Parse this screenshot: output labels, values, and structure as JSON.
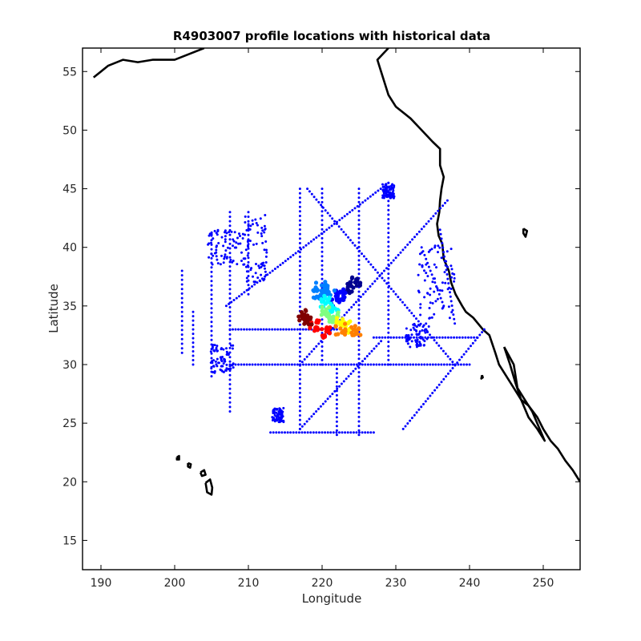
{
  "chart_data": {
    "type": "scatter",
    "title": "R4903007 profile locations with historical data",
    "xlabel": "Longitude",
    "ylabel": "Latitude",
    "xlim": [
      187.5,
      255
    ],
    "ylim": [
      12.5,
      57
    ],
    "xticks": [
      190,
      200,
      210,
      220,
      230,
      240,
      250
    ],
    "yticks": [
      15,
      20,
      25,
      30,
      35,
      40,
      45,
      50,
      55
    ],
    "grid": false,
    "legend": "none",
    "colors": {
      "historical": "#0000ff",
      "coastline": "#000000",
      "float_track_colormap": [
        "#00008f",
        "#0000ff",
        "#0080ff",
        "#00ffff",
        "#80ff80",
        "#ffff00",
        "#ff8000",
        "#ff0000",
        "#800000"
      ]
    },
    "series": [
      {
        "role": "historical",
        "marker": "dot",
        "lines": [
          {
            "from": [
              207.5,
              30.0
            ],
            "to": [
              240.0,
              30.0
            ]
          },
          {
            "from": [
              207.5,
              33.0
            ],
            "to": [
              222.0,
              33.0
            ]
          },
          {
            "from": [
              227.0,
              32.3
            ],
            "to": [
              241.0,
              32.3
            ]
          },
          {
            "from": [
              202.5,
              34.5
            ],
            "to": [
              202.5,
              30.0
            ]
          },
          {
            "from": [
              207.5,
              43.0
            ],
            "to": [
              207.5,
              26.0
            ]
          },
          {
            "from": [
              217.0,
              45.0
            ],
            "to": [
              217.0,
              24.5
            ]
          },
          {
            "from": [
              225.0,
              45.0
            ],
            "to": [
              225.0,
              24.0
            ]
          },
          {
            "from": [
              220.0,
              45.0
            ],
            "to": [
              220.0,
              30.0
            ]
          },
          {
            "from": [
              229.0,
              45.5
            ],
            "to": [
              229.0,
              30.0
            ]
          },
          {
            "from": [
              213.0,
              24.2
            ],
            "to": [
              227.0,
              24.2
            ]
          },
          {
            "from": [
              207.0,
              35.0
            ],
            "to": [
              229.0,
              45.5
            ]
          },
          {
            "from": [
              218.0,
              45.0
            ],
            "to": [
              238.0,
              30.0
            ]
          },
          {
            "from": [
              217.0,
              30.0
            ],
            "to": [
              237.0,
              44.0
            ]
          },
          {
            "from": [
              231.0,
              24.5
            ],
            "to": [
              242.0,
              33.0
            ]
          },
          {
            "from": [
              217.0,
              24.5
            ],
            "to": [
              228.0,
              32.0
            ]
          },
          {
            "from": [
              201.0,
              38.0
            ],
            "to": [
              201.0,
              31.0
            ]
          },
          {
            "from": [
              205.0,
              41.0
            ],
            "to": [
              205.0,
              29.0
            ]
          },
          {
            "from": [
              210.0,
              43.0
            ],
            "to": [
              210.0,
              36.0
            ]
          },
          {
            "from": [
              222.0,
              24.0
            ],
            "to": [
              222.0,
              30.0
            ]
          },
          {
            "from": [
              236.0,
              41.5
            ],
            "to": [
              238.0,
              33.5
            ]
          },
          {
            "from": [
              233.5,
              40.0
            ],
            "to": [
              236.5,
              35.0
            ]
          }
        ],
        "clusters": [
          {
            "center": [
              206.5,
              30.5
            ],
            "spread": [
              1.6,
              1.2
            ]
          },
          {
            "center": [
              235.5,
              37.0
            ],
            "spread": [
              2.6,
              3.2
            ]
          },
          {
            "center": [
              233.0,
              32.5
            ],
            "spread": [
              1.6,
              1.0
            ]
          },
          {
            "center": [
              229.0,
              44.8
            ],
            "spread": [
              0.8,
              0.6
            ]
          },
          {
            "center": [
              214.0,
              25.7
            ],
            "spread": [
              0.8,
              0.6
            ]
          },
          {
            "center": [
              207.0,
              40.0
            ],
            "spread": [
              2.5,
              1.5
            ]
          },
          {
            "center": [
              211.0,
              40.0
            ],
            "spread": [
              1.5,
              3.0
            ]
          }
        ]
      },
      {
        "role": "float_track",
        "points": [
          {
            "x": 224.5,
            "y": 37.0,
            "c": 0.02
          },
          {
            "x": 223.5,
            "y": 36.6,
            "c": 0.06
          },
          {
            "x": 222.5,
            "y": 36.0,
            "c": 0.1
          },
          {
            "x": 221.8,
            "y": 35.4,
            "c": 0.14
          },
          {
            "x": 221.0,
            "y": 36.3,
            "c": 0.2
          },
          {
            "x": 219.8,
            "y": 36.6,
            "c": 0.26
          },
          {
            "x": 219.5,
            "y": 36.0,
            "c": 0.3
          },
          {
            "x": 220.5,
            "y": 35.4,
            "c": 0.36
          },
          {
            "x": 221.5,
            "y": 34.8,
            "c": 0.42
          },
          {
            "x": 220.5,
            "y": 34.4,
            "c": 0.48
          },
          {
            "x": 221.5,
            "y": 34.0,
            "c": 0.54
          },
          {
            "x": 222.5,
            "y": 33.6,
            "c": 0.6
          },
          {
            "x": 223.5,
            "y": 33.2,
            "c": 0.66
          },
          {
            "x": 224.5,
            "y": 33.0,
            "c": 0.72
          },
          {
            "x": 222.5,
            "y": 33.0,
            "c": 0.78
          },
          {
            "x": 220.5,
            "y": 32.8,
            "c": 0.84
          },
          {
            "x": 219.0,
            "y": 33.3,
            "c": 0.9
          },
          {
            "x": 218.0,
            "y": 33.9,
            "c": 0.94
          },
          {
            "x": 217.5,
            "y": 34.2,
            "c": 0.98
          }
        ]
      }
    ],
    "coastlines": [
      {
        "name": "north-america-west",
        "points": [
          [
            229,
            57
          ],
          [
            227.5,
            56
          ],
          [
            228,
            55
          ],
          [
            229,
            53
          ],
          [
            230,
            52
          ],
          [
            232,
            51
          ],
          [
            233.5,
            50
          ],
          [
            235,
            49
          ],
          [
            236,
            48.4
          ],
          [
            236,
            47
          ],
          [
            236.5,
            46
          ],
          [
            236.2,
            45
          ],
          [
            236,
            44
          ],
          [
            235.9,
            43
          ],
          [
            235.6,
            42
          ],
          [
            235.8,
            41
          ],
          [
            236.3,
            40.3
          ],
          [
            236.5,
            39
          ],
          [
            237.2,
            38
          ],
          [
            237.5,
            37
          ],
          [
            238.1,
            36
          ],
          [
            239,
            35
          ],
          [
            239.5,
            34.5
          ],
          [
            240.5,
            34
          ],
          [
            241.8,
            33
          ],
          [
            242.7,
            32.5
          ],
          [
            243.5,
            31
          ],
          [
            244,
            30
          ],
          [
            245,
            29
          ],
          [
            246,
            28
          ],
          [
            247,
            27
          ],
          [
            248,
            26.5
          ],
          [
            249.2,
            25.5
          ],
          [
            250,
            24.5
          ],
          [
            251,
            23.5
          ],
          [
            252,
            22.8
          ],
          [
            253,
            21.8
          ],
          [
            254,
            21
          ],
          [
            254.5,
            20.5
          ],
          [
            255,
            20
          ]
        ]
      },
      {
        "name": "alaska",
        "points": [
          [
            189,
            54.5
          ],
          [
            191,
            55.5
          ],
          [
            193,
            56
          ],
          [
            195,
            55.8
          ],
          [
            197,
            56
          ],
          [
            200,
            56
          ],
          [
            202,
            56.5
          ],
          [
            204,
            57
          ]
        ]
      },
      {
        "name": "baja-california",
        "points": [
          [
            244.7,
            31.5
          ],
          [
            246,
            30
          ],
          [
            246.5,
            28
          ],
          [
            247.5,
            27
          ],
          [
            248.5,
            26
          ],
          [
            250.2,
            23.5
          ],
          [
            249.2,
            24.5
          ],
          [
            248,
            25.5
          ],
          [
            247,
            27
          ],
          [
            246.2,
            28.5
          ],
          [
            245.5,
            30
          ],
          [
            244.7,
            31.5
          ]
        ]
      },
      {
        "name": "hawaii-big-island",
        "points": [
          [
            204.2,
            19.9
          ],
          [
            204.8,
            20.2
          ],
          [
            205.1,
            19.5
          ],
          [
            205,
            18.9
          ],
          [
            204.4,
            19.1
          ],
          [
            204.2,
            19.9
          ]
        ]
      },
      {
        "name": "hawaii-maui",
        "points": [
          [
            203.5,
            20.8
          ],
          [
            204,
            21
          ],
          [
            204.2,
            20.6
          ],
          [
            203.7,
            20.5
          ],
          [
            203.5,
            20.8
          ]
        ]
      },
      {
        "name": "hawaii-oahu",
        "points": [
          [
            201.8,
            21.6
          ],
          [
            202.2,
            21.5
          ],
          [
            202.1,
            21.2
          ],
          [
            201.8,
            21.3
          ],
          [
            201.8,
            21.6
          ]
        ]
      },
      {
        "name": "hawaii-kauai",
        "points": [
          [
            200.3,
            22.1
          ],
          [
            200.6,
            22.2
          ],
          [
            200.6,
            21.9
          ],
          [
            200.3,
            21.9
          ],
          [
            200.3,
            22.1
          ]
        ]
      },
      {
        "name": "great-salt-lake",
        "points": [
          [
            247.3,
            41.6
          ],
          [
            247.8,
            41.4
          ],
          [
            247.6,
            40.9
          ],
          [
            247.3,
            41.2
          ],
          [
            247.3,
            41.6
          ]
        ]
      },
      {
        "name": "isla-guadalupe",
        "points": [
          [
            241.7,
            29.1
          ],
          [
            241.8,
            28.9
          ],
          [
            241.6,
            28.8
          ],
          [
            241.7,
            29.1
          ]
        ]
      }
    ]
  }
}
